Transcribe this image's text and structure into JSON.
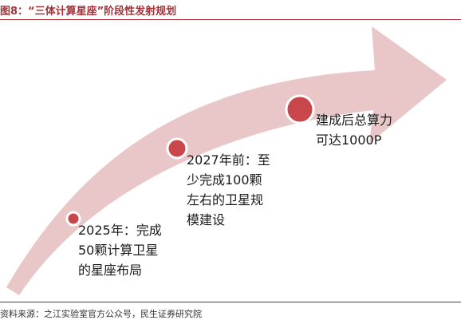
{
  "title": "图8：“三体计算星座”阶段性发射规划",
  "colors": {
    "title": "#a0343a",
    "rule": "#b23b41",
    "arrow_fill": "#e9c7c8",
    "marker_fill": "#c9474b",
    "marker_ring": "#ffffff"
  },
  "milestones": [
    {
      "icon": "milestone-dot-icon",
      "lines": [
        "2025年：完成",
        "50颗计算卫星",
        "的星座布局"
      ]
    },
    {
      "icon": "milestone-dot-icon",
      "lines": [
        "2027年前：至",
        "少完成100颗",
        "左右的卫星规",
        "模建设"
      ]
    },
    {
      "icon": "milestone-dot-icon",
      "lines": [
        "建成后总算力",
        "可达1000P"
      ]
    }
  ],
  "source": "资料来源：之江实验室官方公众号，民生证券研究院"
}
